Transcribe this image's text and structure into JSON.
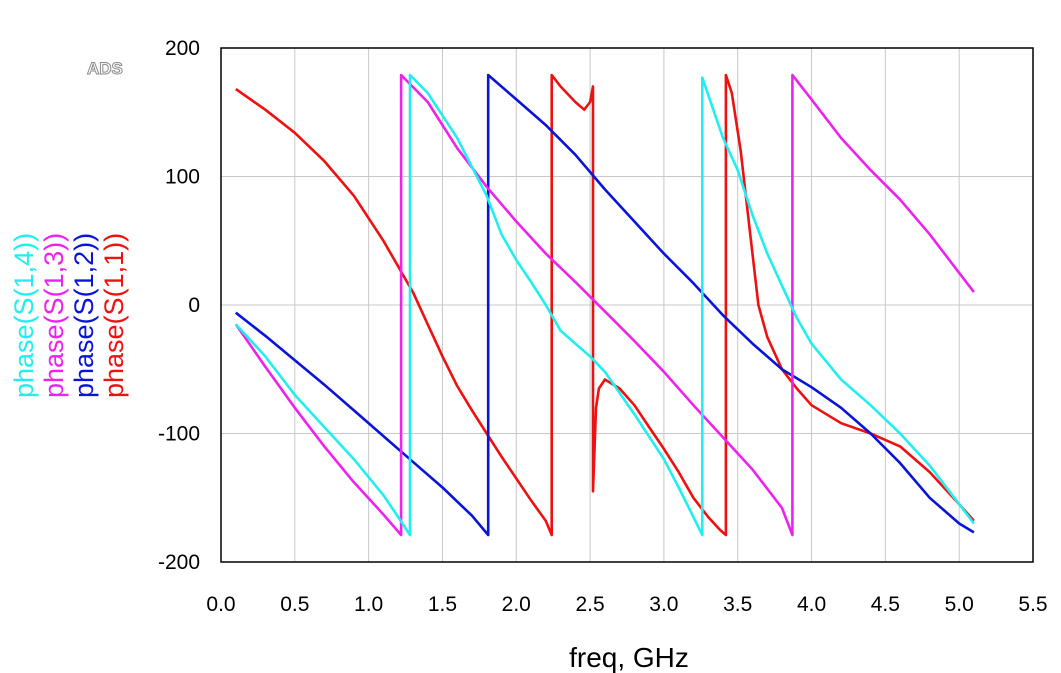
{
  "chart_data": {
    "type": "line",
    "watermark": "ADS",
    "xlabel": "freq, GHz",
    "ylabel": "",
    "xlim": [
      0.0,
      5.5
    ],
    "ylim": [
      -200,
      200
    ],
    "x_ticks": [
      "0.0",
      "0.5",
      "1.0",
      "1.5",
      "2.0",
      "2.5",
      "3.0",
      "3.5",
      "4.0",
      "4.5",
      "5.0",
      "5.5"
    ],
    "y_ticks": [
      "200",
      "100",
      "0",
      "-100",
      "-200"
    ],
    "grid": true,
    "legend_placement": "left, rotated vertical",
    "series": [
      {
        "name": "phase(S(1,1))",
        "color": "#ee1111",
        "points": [
          [
            0.1,
            168
          ],
          [
            0.3,
            152
          ],
          [
            0.5,
            134
          ],
          [
            0.7,
            112
          ],
          [
            0.9,
            85
          ],
          [
            1.1,
            50
          ],
          [
            1.2,
            30
          ],
          [
            1.3,
            10
          ],
          [
            1.4,
            -15
          ],
          [
            1.5,
            -40
          ],
          [
            1.6,
            -63
          ],
          [
            1.7,
            -82
          ],
          [
            1.8,
            -100
          ],
          [
            1.9,
            -118
          ],
          [
            2.0,
            -135
          ],
          [
            2.1,
            -152
          ],
          [
            2.2,
            -168
          ],
          [
            2.24,
            -179
          ],
          [
            2.24,
            179
          ],
          [
            2.3,
            170
          ],
          [
            2.4,
            158
          ],
          [
            2.46,
            152
          ],
          [
            2.5,
            158
          ],
          [
            2.52,
            170
          ],
          [
            2.52,
            -145
          ],
          [
            2.54,
            -80
          ],
          [
            2.56,
            -65
          ],
          [
            2.6,
            -58
          ],
          [
            2.7,
            -65
          ],
          [
            2.8,
            -78
          ],
          [
            2.9,
            -95
          ],
          [
            3.0,
            -112
          ],
          [
            3.1,
            -130
          ],
          [
            3.2,
            -150
          ],
          [
            3.3,
            -165
          ],
          [
            3.38,
            -175
          ],
          [
            3.42,
            -179
          ],
          [
            3.42,
            179
          ],
          [
            3.46,
            165
          ],
          [
            3.52,
            120
          ],
          [
            3.58,
            60
          ],
          [
            3.64,
            0
          ],
          [
            3.7,
            -25
          ],
          [
            3.8,
            -50
          ],
          [
            3.9,
            -65
          ],
          [
            4.0,
            -78
          ],
          [
            4.2,
            -92
          ],
          [
            4.4,
            -100
          ],
          [
            4.6,
            -110
          ],
          [
            4.8,
            -130
          ],
          [
            5.0,
            -155
          ],
          [
            5.1,
            -168
          ]
        ]
      },
      {
        "name": "phase(S(1,2))",
        "color": "#0a14d8",
        "points": [
          [
            0.1,
            -6
          ],
          [
            0.3,
            -24
          ],
          [
            0.5,
            -43
          ],
          [
            0.7,
            -62
          ],
          [
            0.9,
            -82
          ],
          [
            1.1,
            -102
          ],
          [
            1.3,
            -122
          ],
          [
            1.5,
            -142
          ],
          [
            1.7,
            -164
          ],
          [
            1.81,
            -179
          ],
          [
            1.81,
            179
          ],
          [
            2.0,
            160
          ],
          [
            2.2,
            140
          ],
          [
            2.4,
            117
          ],
          [
            2.6,
            90
          ],
          [
            2.8,
            65
          ],
          [
            3.0,
            40
          ],
          [
            3.2,
            17
          ],
          [
            3.4,
            -8
          ],
          [
            3.6,
            -30
          ],
          [
            3.8,
            -50
          ],
          [
            4.0,
            -64
          ],
          [
            4.2,
            -80
          ],
          [
            4.4,
            -100
          ],
          [
            4.6,
            -123
          ],
          [
            4.8,
            -150
          ],
          [
            5.0,
            -170
          ],
          [
            5.1,
            -177
          ]
        ]
      },
      {
        "name": "phase(S(1,3))",
        "color": "#ee22ee",
        "points": [
          [
            0.1,
            -15
          ],
          [
            0.3,
            -48
          ],
          [
            0.5,
            -80
          ],
          [
            0.7,
            -110
          ],
          [
            0.9,
            -138
          ],
          [
            1.1,
            -163
          ],
          [
            1.22,
            -179
          ],
          [
            1.22,
            179
          ],
          [
            1.4,
            158
          ],
          [
            1.6,
            122
          ],
          [
            1.8,
            92
          ],
          [
            2.0,
            65
          ],
          [
            2.2,
            40
          ],
          [
            2.4,
            18
          ],
          [
            2.6,
            -5
          ],
          [
            2.8,
            -28
          ],
          [
            3.0,
            -52
          ],
          [
            3.2,
            -78
          ],
          [
            3.4,
            -103
          ],
          [
            3.6,
            -128
          ],
          [
            3.8,
            -158
          ],
          [
            3.87,
            -179
          ],
          [
            3.87,
            179
          ],
          [
            4.0,
            160
          ],
          [
            4.2,
            130
          ],
          [
            4.4,
            105
          ],
          [
            4.6,
            82
          ],
          [
            4.8,
            55
          ],
          [
            5.0,
            25
          ],
          [
            5.1,
            10
          ]
        ]
      },
      {
        "name": "phase(S(1,4))",
        "color": "#22eef0",
        "points": [
          [
            0.1,
            -15
          ],
          [
            0.3,
            -40
          ],
          [
            0.5,
            -70
          ],
          [
            0.7,
            -95
          ],
          [
            0.9,
            -120
          ],
          [
            1.1,
            -148
          ],
          [
            1.2,
            -165
          ],
          [
            1.28,
            -179
          ],
          [
            1.28,
            179
          ],
          [
            1.4,
            165
          ],
          [
            1.6,
            130
          ],
          [
            1.8,
            85
          ],
          [
            1.9,
            55
          ],
          [
            2.0,
            35
          ],
          [
            2.1,
            18
          ],
          [
            2.2,
            0
          ],
          [
            2.3,
            -20
          ],
          [
            2.4,
            -30
          ],
          [
            2.5,
            -40
          ],
          [
            2.6,
            -52
          ],
          [
            2.8,
            -85
          ],
          [
            3.0,
            -120
          ],
          [
            3.1,
            -142
          ],
          [
            3.2,
            -165
          ],
          [
            3.26,
            -179
          ],
          [
            3.26,
            177
          ],
          [
            3.4,
            130
          ],
          [
            3.5,
            105
          ],
          [
            3.6,
            70
          ],
          [
            3.7,
            40
          ],
          [
            3.8,
            15
          ],
          [
            3.9,
            -10
          ],
          [
            4.0,
            -30
          ],
          [
            4.2,
            -58
          ],
          [
            4.4,
            -78
          ],
          [
            4.6,
            -100
          ],
          [
            4.8,
            -125
          ],
          [
            5.0,
            -155
          ],
          [
            5.1,
            -170
          ]
        ]
      }
    ]
  }
}
